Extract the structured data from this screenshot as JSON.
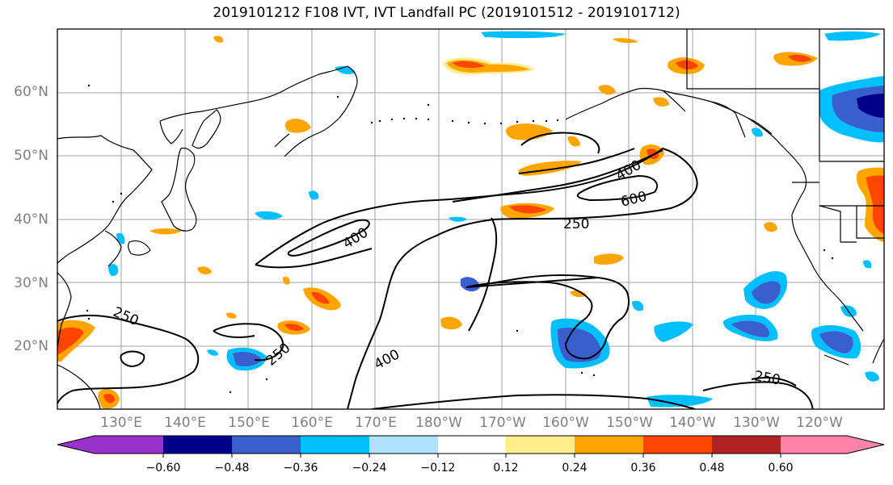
{
  "title": "2019101212 F108 IVT, IVT Landfall PC (2019101512 - 2019101712)",
  "lat_labels": [
    "60°N",
    "50°N",
    "40°N",
    "30°N",
    "20°N"
  ],
  "lon_labels": [
    "130°E",
    "140°E",
    "150°E",
    "160°E",
    "170°E",
    "180°W",
    "170°W",
    "160°W",
    "150°W",
    "140°W",
    "130°W",
    "120°W"
  ],
  "contour_labels": [
    "400",
    "600",
    "400",
    "250",
    "250",
    "250",
    "400",
    "250"
  ],
  "colorbar": {
    "ticks": [
      "−0.60",
      "−0.48",
      "−0.36",
      "−0.24",
      "−0.12",
      "0.12",
      "0.24",
      "0.36",
      "0.48",
      "0.60"
    ],
    "colors": [
      "#9932cc",
      "#00008b",
      "#3a5fcd",
      "#00bfff",
      "#b0e2ff",
      "#ffffff",
      "#ffec8b",
      "#ffa500",
      "#ff4500",
      "#b22222",
      "#ff82ab"
    ]
  }
}
